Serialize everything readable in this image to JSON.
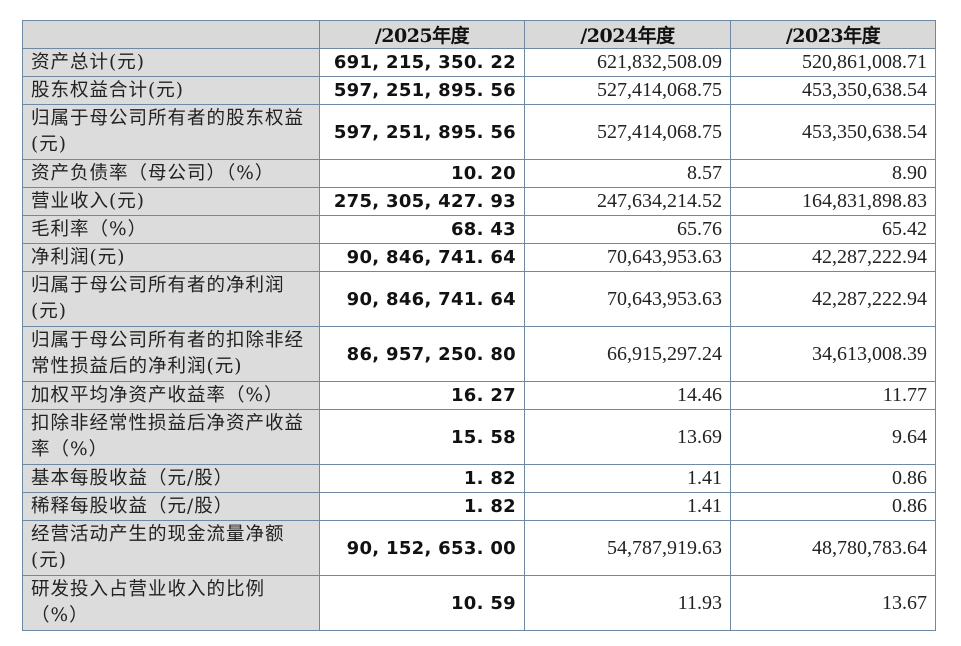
{
  "table": {
    "headers": [
      "",
      "/2025年度",
      "/2024年度",
      "/2023年度"
    ],
    "rows": [
      {
        "label": "资产总计(元)",
        "v2025": "691, 215, 350. 22",
        "v2024": "621,832,508.09",
        "v2023": "520,861,008.71",
        "tall": false
      },
      {
        "label": "股东权益合计(元)",
        "v2025": "597, 251, 895. 56",
        "v2024": "527,414,068.75",
        "v2023": "453,350,638.54",
        "tall": false
      },
      {
        "label": "归属于母公司所有者的股东权益(元)",
        "v2025": "597, 251, 895. 56",
        "v2024": "527,414,068.75",
        "v2023": "453,350,638.54",
        "tall": true
      },
      {
        "label": "资产负债率（母公司）（%）",
        "v2025": "10. 20",
        "v2024": "8.57",
        "v2023": "8.90",
        "tall": false
      },
      {
        "label": "营业收入(元)",
        "v2025": "275, 305, 427. 93",
        "v2024": "247,634,214.52",
        "v2023": "164,831,898.83",
        "tall": false
      },
      {
        "label": "毛利率（%）",
        "v2025": "68. 43",
        "v2024": "65.76",
        "v2023": "65.42",
        "tall": false
      },
      {
        "label": "净利润(元)",
        "v2025": "90, 846, 741. 64",
        "v2024": "70,643,953.63",
        "v2023": "42,287,222.94",
        "tall": false
      },
      {
        "label": "归属于母公司所有者的净利润(元)",
        "v2025": "90, 846, 741. 64",
        "v2024": "70,643,953.63",
        "v2023": "42,287,222.94",
        "tall": true
      },
      {
        "label": "归属于母公司所有者的扣除非经常性损益后的净利润(元)",
        "v2025": "86, 957, 250. 80",
        "v2024": "66,915,297.24",
        "v2023": "34,613,008.39",
        "tall": true
      },
      {
        "label": "加权平均净资产收益率（%）",
        "v2025": "16. 27",
        "v2024": "14.46",
        "v2023": "11.77",
        "tall": false
      },
      {
        "label": "扣除非经常性损益后净资产收益率（%）",
        "v2025": "15. 58",
        "v2024": "13.69",
        "v2023": "9.64",
        "tall": true
      },
      {
        "label": "基本每股收益（元/股）",
        "v2025": "1. 82",
        "v2024": "1.41",
        "v2023": "0.86",
        "tall": false
      },
      {
        "label": "稀释每股收益（元/股）",
        "v2025": "1. 82",
        "v2024": "1.41",
        "v2023": "0.86",
        "tall": false
      },
      {
        "label": "经营活动产生的现金流量净额(元)",
        "v2025": "90, 152, 653. 00",
        "v2024": "54,787,919.63",
        "v2023": "48,780,783.64",
        "tall": true
      },
      {
        "label": "研发投入占营业收入的比例（%）",
        "v2025": "10. 59",
        "v2024": "11.93",
        "v2023": "13.67",
        "tall": true
      }
    ]
  },
  "colors": {
    "label_bg": "#dcdcdc",
    "header_bg": "#d9d9d9",
    "border": "#6f88a3",
    "value_bg": "#ffffff"
  }
}
